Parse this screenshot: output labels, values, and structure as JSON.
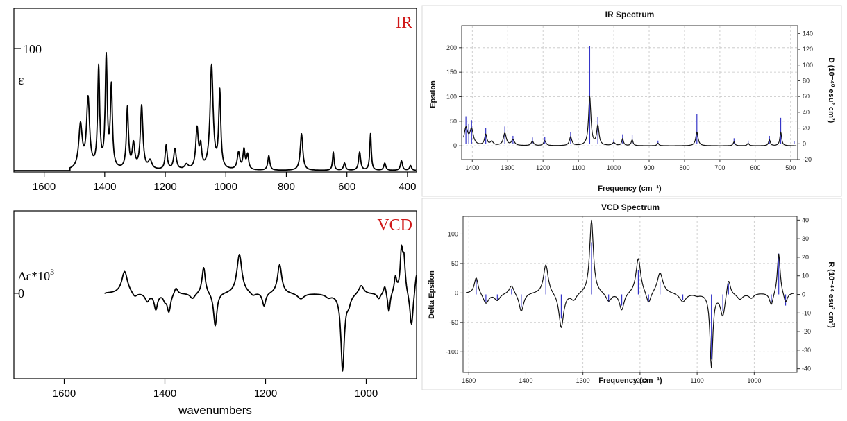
{
  "panels": {
    "exp_ir": {
      "type": "line",
      "corner_label": "IR",
      "y_tick_label": "100",
      "y_symbol": "ε",
      "x_ticks": [
        "1600",
        "1400",
        "1200",
        "1000",
        "800",
        "600",
        "400"
      ],
      "x_tick_values": [
        1600,
        1400,
        1200,
        1000,
        800,
        600,
        400
      ],
      "xlim": [
        1700,
        370
      ],
      "ylim": [
        0,
        100
      ],
      "peaks": [
        [
          1480,
          36,
          7
        ],
        [
          1455,
          57,
          6
        ],
        [
          1420,
          82,
          4
        ],
        [
          1395,
          90,
          4
        ],
        [
          1378,
          66,
          4
        ],
        [
          1325,
          50,
          4
        ],
        [
          1305,
          20,
          5
        ],
        [
          1278,
          52,
          5
        ],
        [
          1250,
          7,
          7
        ],
        [
          1197,
          20,
          4
        ],
        [
          1168,
          17,
          5
        ],
        [
          1130,
          4,
          7
        ],
        [
          1095,
          33,
          5
        ],
        [
          1083,
          17,
          4
        ],
        [
          1047,
          85,
          6
        ],
        [
          1020,
          63,
          4
        ],
        [
          958,
          14,
          5
        ],
        [
          940,
          16,
          4
        ],
        [
          928,
          12,
          4
        ],
        [
          858,
          12,
          4
        ],
        [
          750,
          30,
          5
        ],
        [
          645,
          15,
          3
        ],
        [
          608,
          6,
          4
        ],
        [
          558,
          15,
          4
        ],
        [
          522,
          30,
          3
        ],
        [
          475,
          6,
          4
        ],
        [
          420,
          8,
          4
        ],
        [
          390,
          4,
          4
        ]
      ]
    },
    "exp_vcd": {
      "type": "line",
      "corner_label": "VCD",
      "y_symbol": "Δε*10",
      "y_symbol_sup": "3",
      "y_zero_label": "0",
      "x_ticks": [
        "1600",
        "1400",
        "1200",
        "1000"
      ],
      "x_tick_values": [
        1600,
        1400,
        1200,
        1000
      ],
      "xlabel": "wavenumbers",
      "xlim": [
        1700,
        900
      ],
      "ylim": [
        -60,
        60
      ],
      "data_start": 1515,
      "peaks": [
        [
          1480,
          20,
          7
        ],
        [
          1460,
          -4,
          6
        ],
        [
          1435,
          -7,
          5
        ],
        [
          1418,
          -14,
          4
        ],
        [
          1400,
          -5,
          4
        ],
        [
          1392,
          -16,
          4
        ],
        [
          1378,
          6,
          4
        ],
        [
          1345,
          -5,
          6
        ],
        [
          1323,
          24,
          4
        ],
        [
          1300,
          -30,
          4
        ],
        [
          1252,
          35,
          6
        ],
        [
          1225,
          -3,
          6
        ],
        [
          1203,
          -12,
          4
        ],
        [
          1172,
          26,
          5
        ],
        [
          1130,
          -5,
          8
        ],
        [
          1075,
          -3,
          7
        ],
        [
          1047,
          -68,
          4
        ],
        [
          1035,
          -8,
          5
        ],
        [
          1010,
          8,
          6
        ],
        [
          975,
          -5,
          4
        ],
        [
          963,
          8,
          3
        ],
        [
          955,
          -18,
          3
        ],
        [
          942,
          14,
          3
        ],
        [
          930,
          36,
          3
        ],
        [
          925,
          28,
          3
        ],
        [
          910,
          -32,
          4
        ],
        [
          900,
          20,
          4
        ]
      ]
    },
    "calc_ir": {
      "type": "line",
      "title": "IR Spectrum",
      "ylabel": "Epsilon",
      "ylabel2": "D (10⁻⁴⁰ esu² cm²)",
      "xlabel": "Frequency (cm⁻¹)",
      "xlim": [
        1430,
        480
      ],
      "ylim": [
        -28,
        245
      ],
      "ylim2": [
        -20,
        150
      ],
      "x_ticks": [
        "1400",
        "1300",
        "1200",
        "1100",
        "1000",
        "900",
        "800",
        "700",
        "600",
        "500"
      ],
      "x_tick_values": [
        1400,
        1300,
        1200,
        1100,
        1000,
        900,
        800,
        700,
        600,
        500
      ],
      "y_ticks": [
        "0",
        "50",
        "100",
        "150",
        "200"
      ],
      "y_tick_values": [
        0,
        50,
        100,
        150,
        200
      ],
      "y2_ticks": [
        "-20",
        "0",
        "20",
        "40",
        "60",
        "80",
        "100",
        "120",
        "140"
      ],
      "y2_tick_values": [
        -20,
        0,
        20,
        40,
        60,
        80,
        100,
        120,
        140
      ],
      "peaks": [
        [
          1418,
          35,
          6
        ],
        [
          1402,
          32,
          6
        ],
        [
          1362,
          22,
          4
        ],
        [
          1345,
          8,
          5
        ],
        [
          1308,
          25,
          5
        ],
        [
          1285,
          12,
          5
        ],
        [
          1230,
          9,
          4
        ],
        [
          1195,
          10,
          4
        ],
        [
          1122,
          18,
          4
        ],
        [
          1068,
          100,
          4
        ],
        [
          1045,
          40,
          4
        ],
        [
          1000,
          6,
          5
        ],
        [
          975,
          14,
          3
        ],
        [
          948,
          12,
          3
        ],
        [
          875,
          5,
          3
        ],
        [
          765,
          28,
          4
        ],
        [
          660,
          8,
          3
        ],
        [
          620,
          5,
          3
        ],
        [
          560,
          12,
          3
        ],
        [
          528,
          28,
          3
        ]
      ],
      "sticks": [
        [
          1418,
          35
        ],
        [
          1410,
          25
        ],
        [
          1402,
          30
        ],
        [
          1362,
          20
        ],
        [
          1308,
          22
        ],
        [
          1285,
          10
        ],
        [
          1230,
          8
        ],
        [
          1195,
          9
        ],
        [
          1122,
          15
        ],
        [
          1068,
          124
        ],
        [
          1045,
          34
        ],
        [
          1000,
          5
        ],
        [
          975,
          12
        ],
        [
          948,
          11
        ],
        [
          875,
          4
        ],
        [
          765,
          38
        ],
        [
          660,
          7
        ],
        [
          620,
          4
        ],
        [
          560,
          10
        ],
        [
          528,
          33
        ],
        [
          490,
          3
        ]
      ]
    },
    "calc_vcd": {
      "type": "line",
      "title": "VCD Spectrum",
      "ylabel": "Delta Epsilon",
      "ylabel2": "R (10⁻⁴⁴ esu² cm²)",
      "xlabel": "Frequency (cm⁻¹)",
      "xlim": [
        1510,
        925
      ],
      "ylim": [
        -135,
        130
      ],
      "ylim2": [
        -42,
        42
      ],
      "x_ticks": [
        "1500",
        "1400",
        "1300",
        "1200",
        "1100",
        "1000"
      ],
      "x_tick_values": [
        1500,
        1400,
        1300,
        1200,
        1100,
        1000
      ],
      "y_ticks": [
        "-100",
        "-50",
        "0",
        "50",
        "100"
      ],
      "y_tick_values": [
        -100,
        -50,
        0,
        50,
        100
      ],
      "y2_ticks": [
        "-40",
        "-30",
        "-20",
        "-10",
        "0",
        "10",
        "20",
        "30",
        "40"
      ],
      "y2_tick_values": [
        -40,
        -30,
        -20,
        -10,
        0,
        10,
        20,
        30,
        40
      ],
      "peaks": [
        [
          1487,
          28,
          4
        ],
        [
          1470,
          -18,
          6
        ],
        [
          1450,
          -12,
          6
        ],
        [
          1425,
          15,
          5
        ],
        [
          1408,
          -32,
          5
        ],
        [
          1365,
          50,
          5
        ],
        [
          1338,
          -60,
          5
        ],
        [
          1316,
          -12,
          6
        ],
        [
          1285,
          125,
          4
        ],
        [
          1255,
          -15,
          6
        ],
        [
          1232,
          -30,
          5
        ],
        [
          1203,
          60,
          5
        ],
        [
          1185,
          -22,
          5
        ],
        [
          1165,
          35,
          6
        ],
        [
          1125,
          -15,
          7
        ],
        [
          1100,
          -3,
          6
        ],
        [
          1075,
          -125,
          3
        ],
        [
          1055,
          -40,
          5
        ],
        [
          1045,
          30,
          4
        ],
        [
          1025,
          -10,
          6
        ],
        [
          1005,
          -8,
          5
        ],
        [
          970,
          -22,
          4
        ],
        [
          957,
          70,
          3
        ],
        [
          945,
          -18,
          4
        ]
      ],
      "sticks": [
        [
          1487,
          8
        ],
        [
          1470,
          -4
        ],
        [
          1450,
          -3
        ],
        [
          1425,
          3
        ],
        [
          1408,
          -7
        ],
        [
          1365,
          10
        ],
        [
          1338,
          -13
        ],
        [
          1285,
          28
        ],
        [
          1255,
          -4
        ],
        [
          1232,
          -6
        ],
        [
          1203,
          13
        ],
        [
          1185,
          -4
        ],
        [
          1165,
          7
        ],
        [
          1125,
          -3
        ],
        [
          1075,
          -35
        ],
        [
          1055,
          -9
        ],
        [
          1045,
          6
        ],
        [
          970,
          -4
        ],
        [
          957,
          22
        ],
        [
          945,
          -6
        ]
      ]
    }
  }
}
